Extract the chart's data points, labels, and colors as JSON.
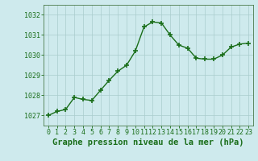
{
  "x": [
    0,
    1,
    2,
    3,
    4,
    5,
    6,
    7,
    8,
    9,
    10,
    11,
    12,
    13,
    14,
    15,
    16,
    17,
    18,
    19,
    20,
    21,
    22,
    23
  ],
  "y": [
    1027.0,
    1027.2,
    1027.3,
    1027.9,
    1027.8,
    1027.75,
    1028.25,
    1028.75,
    1029.2,
    1029.5,
    1030.2,
    1031.4,
    1031.65,
    1031.6,
    1031.0,
    1030.5,
    1030.35,
    1029.85,
    1029.8,
    1029.8,
    1030.0,
    1030.4,
    1030.55,
    1030.6
  ],
  "line_color": "#1a6e1a",
  "marker": "+",
  "marker_size": 4,
  "marker_linewidth": 1.2,
  "bg_color": "#ceeaed",
  "grid_color": "#aacccc",
  "axis_color": "#4a7a4a",
  "label_color": "#1a6e1a",
  "ylim": [
    1026.5,
    1032.5
  ],
  "yticks": [
    1027,
    1028,
    1029,
    1030,
    1031,
    1032
  ],
  "xticks": [
    0,
    1,
    2,
    3,
    4,
    5,
    6,
    7,
    8,
    9,
    10,
    11,
    12,
    13,
    14,
    15,
    16,
    17,
    18,
    19,
    20,
    21,
    22,
    23
  ],
  "xlabel": "Graphe pression niveau de la mer (hPa)",
  "xlabel_fontsize": 7.5,
  "tick_fontsize": 6.0,
  "ytick_fontsize": 6.0,
  "line_width": 1.0
}
